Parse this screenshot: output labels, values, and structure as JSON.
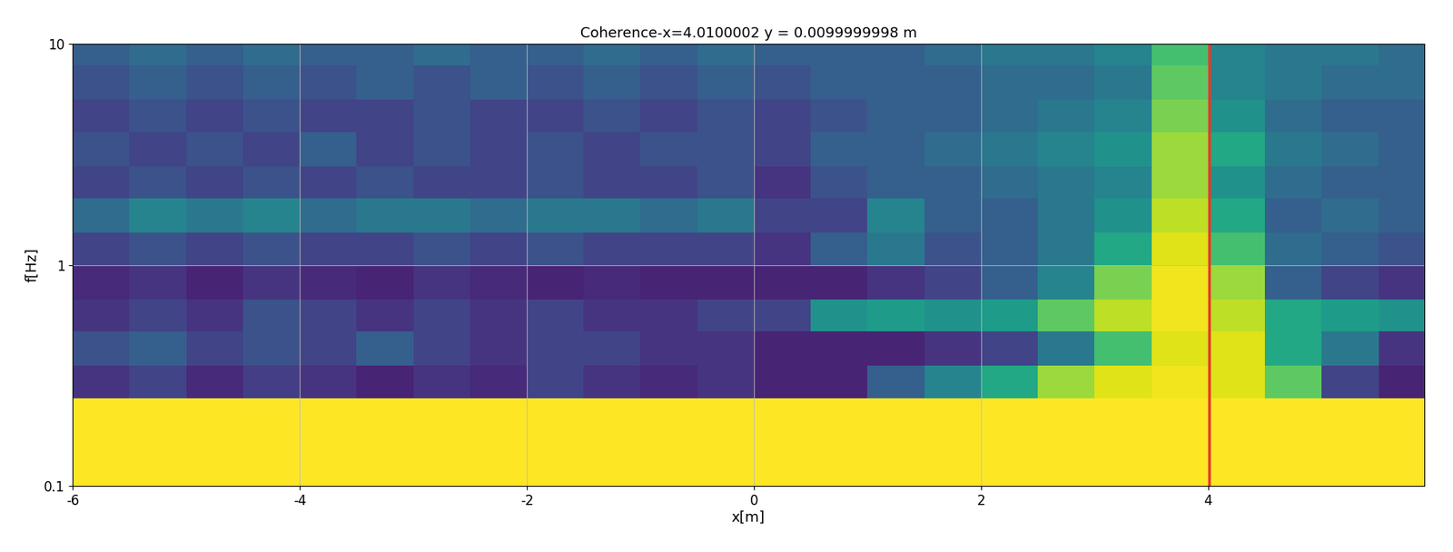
{
  "chart_data": {
    "type": "heatmap",
    "title": "Coherence-x=4.0100002 y = 0.0099999998 m",
    "x_label": "x[m]",
    "y_label": "f[Hz]",
    "xlim": [
      -6,
      5.9
    ],
    "xticks": [
      -6,
      -4,
      -2,
      0,
      2,
      4
    ],
    "ylim": [
      0.1,
      10
    ],
    "yticks": [
      0.1,
      1,
      10
    ],
    "log": "y",
    "grid": true,
    "reference_x": 4.01,
    "reference_color": "#e8392a",
    "color_range": [
      0,
      1
    ],
    "x_edges": [
      -6,
      -5.5,
      -5,
      -4.5,
      -4,
      -3.5,
      -3,
      -2.5,
      -2,
      -1.5,
      -1,
      -0.5,
      0,
      0.5,
      1,
      1.5,
      2,
      2.5,
      3,
      3.5,
      4,
      4.5,
      5,
      5.5,
      6
    ],
    "f_edges": [
      0.1,
      0.25,
      0.35,
      0.5,
      0.7,
      1.0,
      1.4,
      2.0,
      2.8,
      4.0,
      5.6,
      8.0,
      10
    ],
    "cells": [
      [
        1,
        1,
        1,
        1,
        1,
        1,
        1,
        1,
        1,
        1,
        1,
        1,
        1,
        1,
        1,
        1,
        1,
        1,
        1,
        1,
        1,
        1,
        1,
        1
      ],
      [
        0.15,
        0.2,
        0.12,
        0.18,
        0.15,
        0.1,
        0.15,
        0.12,
        0.2,
        0.15,
        0.12,
        0.15,
        0.1,
        0.1,
        0.3,
        0.45,
        0.6,
        0.85,
        0.95,
        0.98,
        0.95,
        0.75,
        0.2,
        0.1
      ],
      [
        0.25,
        0.3,
        0.2,
        0.25,
        0.2,
        0.3,
        0.2,
        0.15,
        0.2,
        0.2,
        0.15,
        0.15,
        0.1,
        0.1,
        0.1,
        0.15,
        0.2,
        0.4,
        0.7,
        0.95,
        0.95,
        0.6,
        0.4,
        0.15
      ],
      [
        0.15,
        0.2,
        0.15,
        0.25,
        0.2,
        0.15,
        0.2,
        0.15,
        0.2,
        0.15,
        0.15,
        0.2,
        0.2,
        0.5,
        0.55,
        0.5,
        0.55,
        0.75,
        0.9,
        0.98,
        0.9,
        0.6,
        0.55,
        0.5
      ],
      [
        0.12,
        0.15,
        0.1,
        0.15,
        0.12,
        0.1,
        0.15,
        0.12,
        0.1,
        0.12,
        0.1,
        0.1,
        0.1,
        0.1,
        0.15,
        0.2,
        0.3,
        0.45,
        0.8,
        0.98,
        0.85,
        0.3,
        0.2,
        0.15
      ],
      [
        0.2,
        0.25,
        0.2,
        0.25,
        0.2,
        0.2,
        0.25,
        0.2,
        0.25,
        0.2,
        0.2,
        0.2,
        0.15,
        0.3,
        0.4,
        0.25,
        0.3,
        0.4,
        0.6,
        0.95,
        0.7,
        0.35,
        0.3,
        0.25
      ],
      [
        0.35,
        0.45,
        0.4,
        0.45,
        0.35,
        0.4,
        0.4,
        0.35,
        0.4,
        0.4,
        0.35,
        0.4,
        0.2,
        0.2,
        0.45,
        0.3,
        0.3,
        0.4,
        0.5,
        0.9,
        0.6,
        0.3,
        0.35,
        0.3
      ],
      [
        0.2,
        0.25,
        0.2,
        0.25,
        0.2,
        0.25,
        0.2,
        0.2,
        0.25,
        0.2,
        0.2,
        0.25,
        0.15,
        0.25,
        0.3,
        0.3,
        0.35,
        0.4,
        0.45,
        0.85,
        0.5,
        0.35,
        0.3,
        0.3
      ],
      [
        0.25,
        0.2,
        0.25,
        0.2,
        0.3,
        0.2,
        0.25,
        0.2,
        0.25,
        0.2,
        0.25,
        0.25,
        0.2,
        0.3,
        0.3,
        0.35,
        0.4,
        0.45,
        0.5,
        0.85,
        0.6,
        0.4,
        0.35,
        0.3
      ],
      [
        0.2,
        0.25,
        0.2,
        0.25,
        0.2,
        0.2,
        0.25,
        0.2,
        0.2,
        0.25,
        0.2,
        0.25,
        0.2,
        0.25,
        0.3,
        0.3,
        0.35,
        0.4,
        0.45,
        0.8,
        0.5,
        0.35,
        0.3,
        0.3
      ],
      [
        0.25,
        0.3,
        0.25,
        0.3,
        0.25,
        0.3,
        0.25,
        0.3,
        0.25,
        0.3,
        0.25,
        0.3,
        0.25,
        0.3,
        0.3,
        0.3,
        0.35,
        0.35,
        0.4,
        0.75,
        0.45,
        0.4,
        0.35,
        0.35
      ],
      [
        0.3,
        0.35,
        0.3,
        0.35,
        0.3,
        0.3,
        0.35,
        0.3,
        0.3,
        0.35,
        0.3,
        0.35,
        0.3,
        0.3,
        0.3,
        0.35,
        0.4,
        0.4,
        0.45,
        0.7,
        0.45,
        0.4,
        0.4,
        0.35
      ]
    ]
  }
}
